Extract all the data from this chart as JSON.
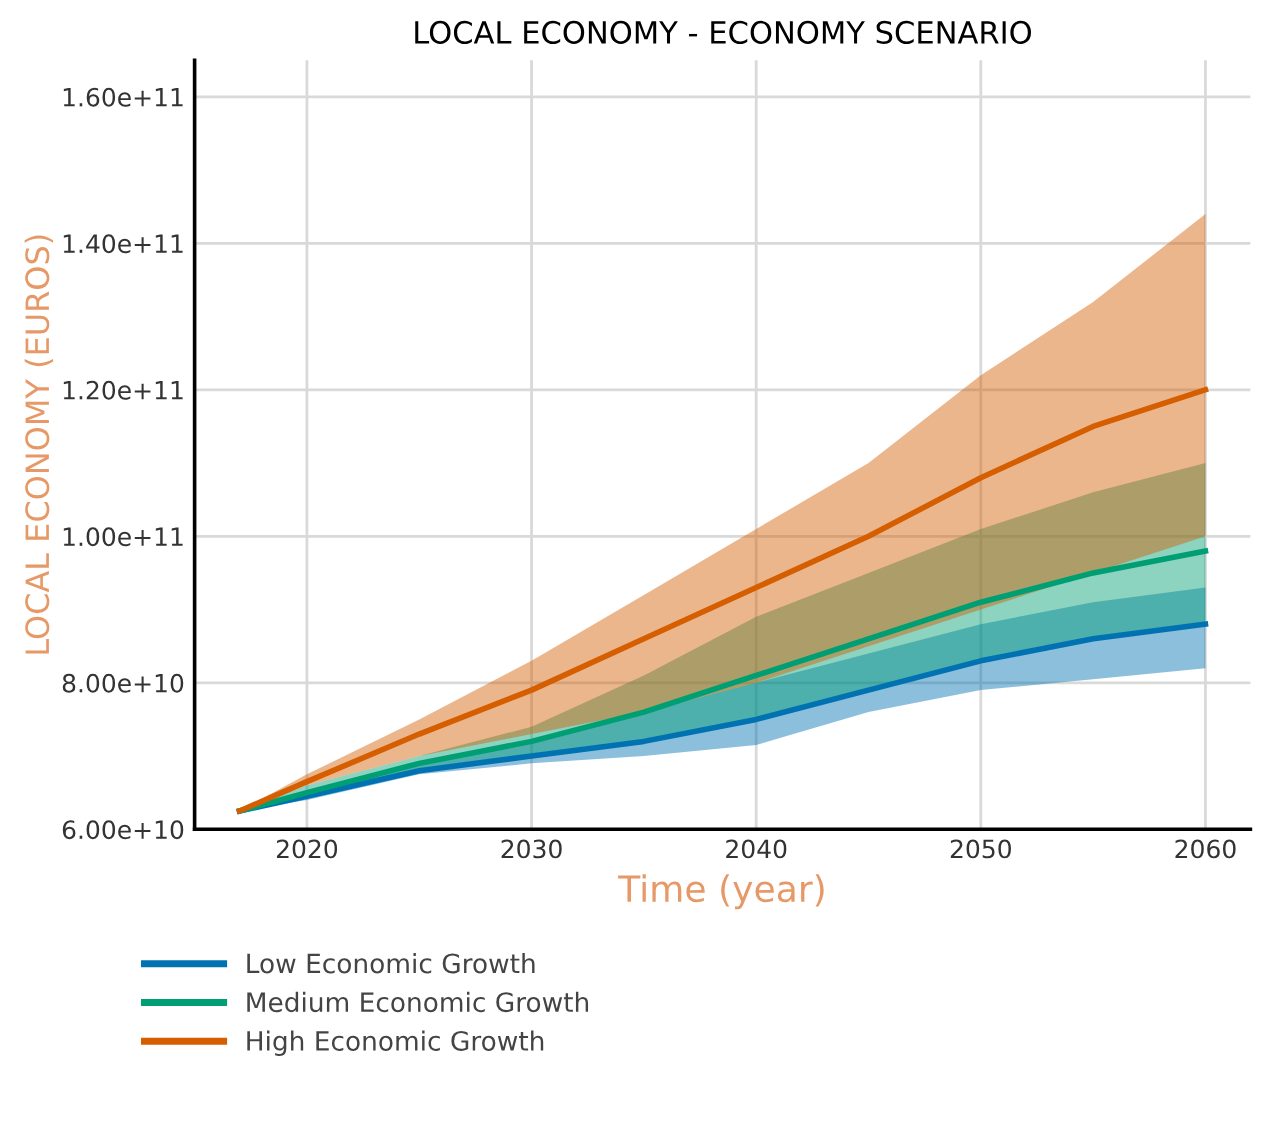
{
  "chart_data": {
    "type": "line",
    "title": "LOCAL ECONOMY - ECONOMY SCENARIO",
    "xlabel": "Time (year)",
    "ylabel": "LOCAL ECONOMY (EUROS)",
    "x": [
      2017,
      2020,
      2025,
      2030,
      2035,
      2040,
      2045,
      2050,
      2055,
      2060
    ],
    "series": [
      {
        "name": "Low Economic Growth",
        "color": "#0072b2",
        "values": [
          62500000000,
          64500000000,
          68000000000,
          70000000000,
          72000000000,
          75000000000,
          79000000000,
          83000000000,
          86000000000,
          88000000000
        ],
        "lower": [
          62500000000,
          64000000000,
          67500000000,
          69000000000,
          70000000000,
          71500000000,
          76000000000,
          79000000000,
          80500000000,
          82000000000
        ],
        "upper": [
          62500000000,
          65000000000,
          69000000000,
          72000000000,
          76000000000,
          80000000000,
          84000000000,
          88000000000,
          91000000000,
          93000000000
        ]
      },
      {
        "name": "Medium Economic Growth",
        "color": "#009e73",
        "values": [
          62500000000,
          65000000000,
          69000000000,
          72000000000,
          76000000000,
          81000000000,
          86000000000,
          91000000000,
          95000000000,
          98000000000
        ],
        "lower": [
          62500000000,
          64500000000,
          68000000000,
          70000000000,
          72000000000,
          75000000000,
          79000000000,
          83000000000,
          86000000000,
          88000000000
        ],
        "upper": [
          62500000000,
          66000000000,
          70000000000,
          74000000000,
          81000000000,
          89000000000,
          95000000000,
          101000000000,
          106000000000,
          110000000000
        ]
      },
      {
        "name": "High Economic Growth",
        "color": "#d55e00",
        "values": [
          62500000000,
          66500000000,
          73000000000,
          79000000000,
          86000000000,
          93000000000,
          100000000000,
          108000000000,
          115000000000,
          120000000000
        ],
        "lower": [
          62500000000,
          66000000000,
          70000000000,
          73000000000,
          76000000000,
          80000000000,
          85000000000,
          90000000000,
          95000000000,
          100000000000
        ],
        "upper": [
          62500000000,
          67500000000,
          75000000000,
          83000000000,
          92000000000,
          101000000000,
          110000000000,
          122000000000,
          132000000000,
          144000000000
        ]
      }
    ],
    "xlim": [
      2015,
      2062
    ],
    "xticks": [
      2020,
      2030,
      2040,
      2050,
      2060
    ],
    "ylim": [
      60000000000,
      165000000000
    ],
    "yticks": [
      {
        "value": 60000000000,
        "label": "6.00e+10"
      },
      {
        "value": 80000000000,
        "label": "8.00e+10"
      },
      {
        "value": 100000000000,
        "label": "1.00e+11"
      },
      {
        "value": 120000000000,
        "label": "1.20e+11"
      },
      {
        "value": 140000000000,
        "label": "1.40e+11"
      },
      {
        "value": 160000000000,
        "label": "1.60e+11"
      }
    ],
    "grid": true,
    "legend": "bottom left",
    "line_style": "solid",
    "marker": "none"
  }
}
